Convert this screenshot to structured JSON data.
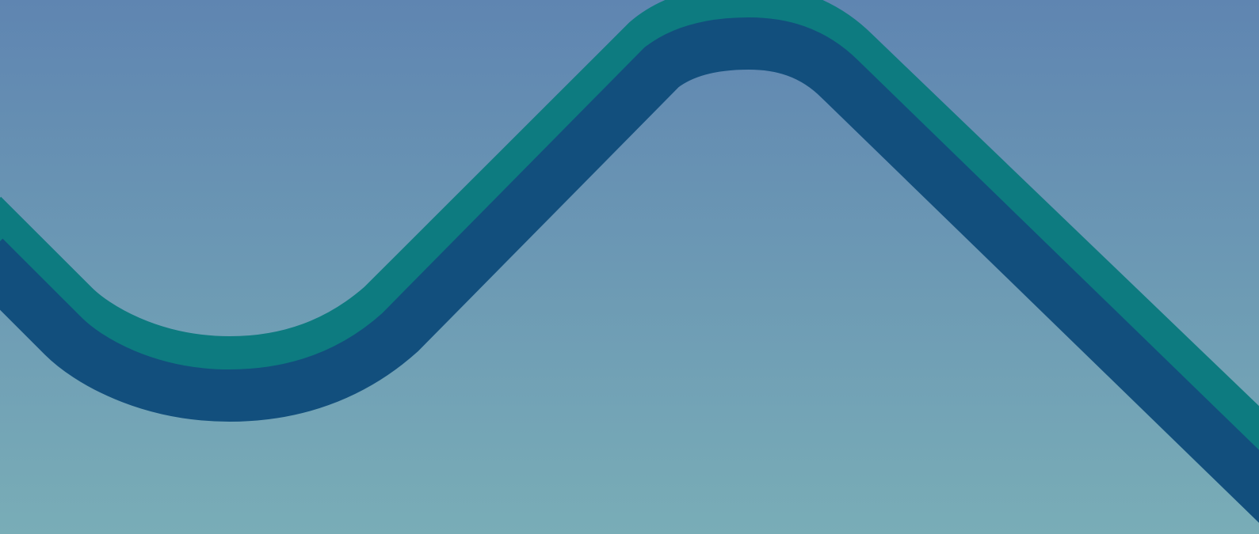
{
  "colors": {
    "background_top": "#5f85b1",
    "background_bottom": "#79adb7",
    "wave_band": "#124f7d",
    "wave_edge": "#0d7b80"
  },
  "elements": {
    "wave_band": "wave-band",
    "wave_edge": "wave-edge-stripe"
  }
}
